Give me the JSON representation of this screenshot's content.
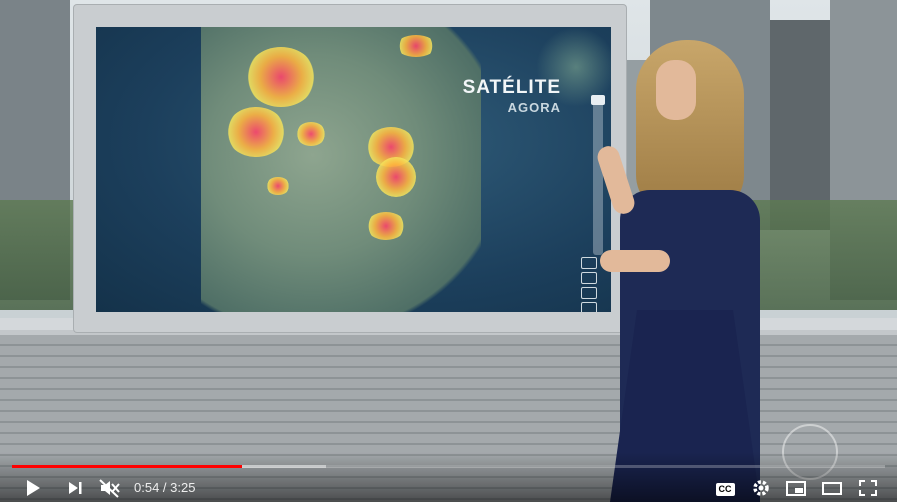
{
  "broadcast": {
    "overlay_title": "SATÉLITE",
    "overlay_subtitle": "AGORA"
  },
  "player": {
    "current_time": "0:54",
    "separator": " / ",
    "duration": "3:25",
    "played_fraction": 0.2634,
    "buffered_fraction": 0.36
  },
  "controls": {
    "play_icon": "play-icon",
    "next_icon": "next-icon",
    "volume_icon": "volume-muted-icon",
    "cc_label": "CC",
    "settings_icon": "gear-icon",
    "miniplayer_icon": "miniplayer-icon",
    "theater_icon": "theater-icon",
    "fullscreen_icon": "fullscreen-icon"
  },
  "colors": {
    "progress": "#ff0000",
    "control_text": "#ffffff"
  }
}
